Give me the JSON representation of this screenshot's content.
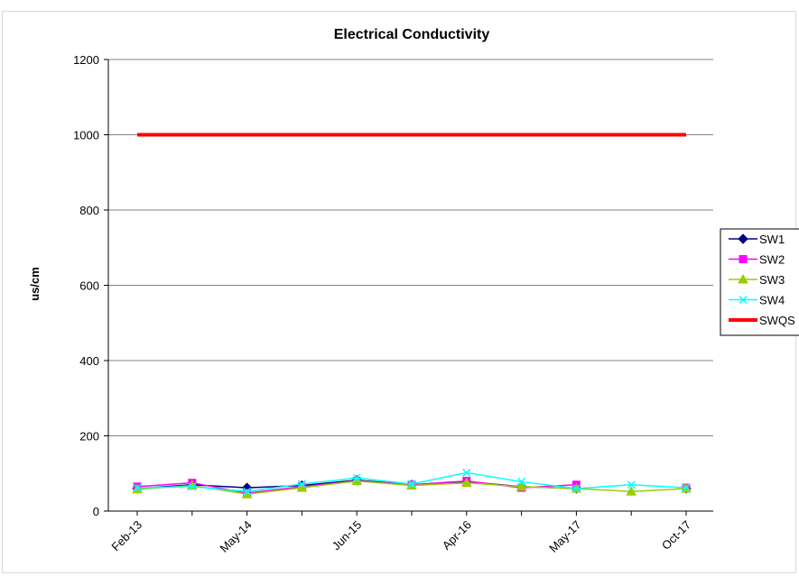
{
  "chart_data": {
    "type": "line",
    "title": "Electrical  Conductivity",
    "xlabel": "",
    "ylabel": "us/cm",
    "ylim": [
      0,
      1200
    ],
    "yticks": [
      0,
      200,
      400,
      600,
      800,
      1000,
      1200
    ],
    "grid": true,
    "legend_position": "right",
    "x": [
      "Feb-13",
      "",
      "May-14",
      "",
      "Jun-15",
      "",
      "Apr-16",
      "",
      "May-17",
      "",
      "Oct-17"
    ],
    "x_tick_labels": [
      "Feb-13",
      "May-14",
      "Jun-15",
      "Apr-16",
      "May-17",
      "Oct-17"
    ],
    "series": [
      {
        "name": "SW1",
        "color": "#000080",
        "marker": "diamond",
        "values": [
          60,
          70,
          62,
          68,
          82,
          70,
          78,
          65,
          60,
          null,
          60
        ]
      },
      {
        "name": "SW2",
        "color": "#ff00ff",
        "marker": "square",
        "values": [
          65,
          75,
          48,
          65,
          80,
          70,
          80,
          62,
          70,
          null,
          62
        ]
      },
      {
        "name": "SW3",
        "color": "#99cc00",
        "marker": "triangle",
        "values": [
          58,
          68,
          45,
          62,
          80,
          68,
          75,
          65,
          60,
          52,
          60
        ]
      },
      {
        "name": "SW4",
        "color": "#00ffff",
        "marker": "x",
        "values": [
          62,
          65,
          52,
          72,
          88,
          72,
          102,
          78,
          60,
          70,
          62
        ]
      },
      {
        "name": "SWQS",
        "color": "#ff0000",
        "marker": "none",
        "values": [
          1000,
          1000,
          1000,
          1000,
          1000,
          1000,
          1000,
          1000,
          1000,
          1000,
          1000
        ]
      }
    ]
  }
}
